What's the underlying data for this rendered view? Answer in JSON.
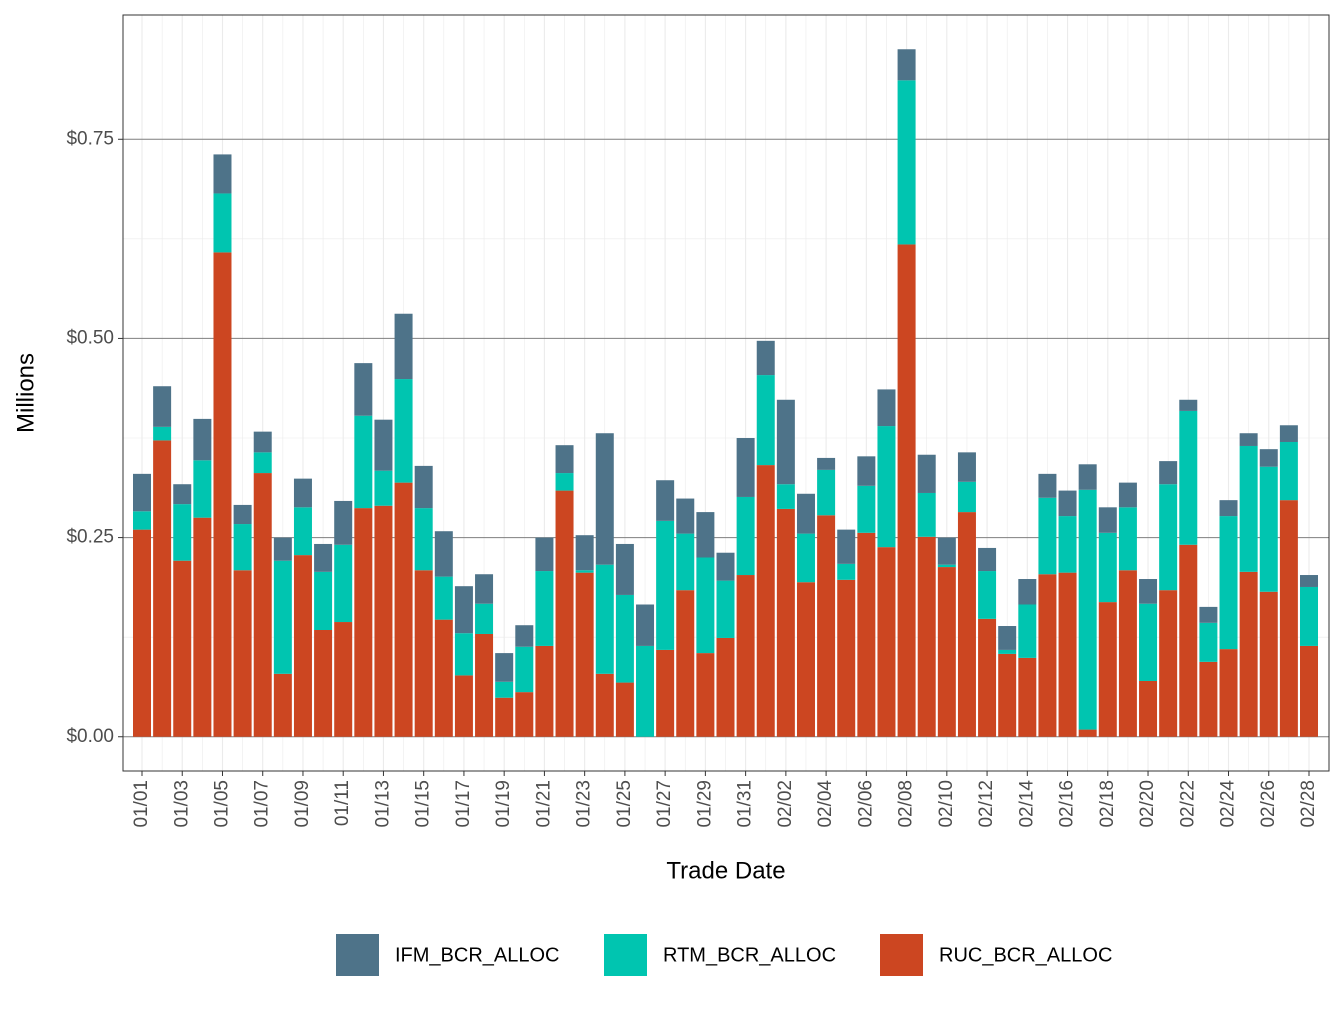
{
  "chart_data": {
    "type": "stacked_bar",
    "x_label": "Trade Date",
    "y_label": "Millions",
    "categories": [
      "01/01",
      null,
      "01/03",
      null,
      "01/05",
      null,
      "01/07",
      null,
      "01/09",
      null,
      "01/11",
      null,
      "01/13",
      null,
      "01/15",
      null,
      "01/17",
      null,
      "01/19",
      null,
      "01/21",
      null,
      "01/23",
      null,
      "01/25",
      null,
      "01/27",
      null,
      "01/29",
      null,
      "01/31",
      null,
      "02/02",
      null,
      "02/04",
      null,
      "02/06",
      null,
      "02/08",
      null,
      "02/10",
      null,
      "02/12",
      null,
      "02/14",
      null,
      "02/16",
      null,
      "02/18",
      null,
      "02/20",
      null,
      "02/22",
      null,
      "02/24",
      null,
      "02/26",
      null,
      "02/28"
    ],
    "series": [
      {
        "name": "IFM_BCR_ALLOC",
        "color": "#4e7389",
        "values": [
          0.047,
          0.051,
          0.025,
          0.052,
          0.049,
          0.024,
          0.026,
          0.029,
          0.036,
          0.035,
          0.055,
          0.066,
          0.064,
          0.082,
          0.053,
          0.057,
          0.059,
          0.037,
          0.036,
          0.027,
          0.042,
          0.035,
          0.044,
          0.165,
          0.064,
          0.052,
          0.051,
          0.044,
          0.057,
          0.035,
          0.074,
          0.043,
          0.106,
          0.05,
          0.015,
          0.043,
          0.037,
          0.046,
          0.039,
          0.048,
          0.034,
          0.037,
          0.029,
          0.03,
          0.032,
          0.03,
          0.032,
          0.032,
          0.032,
          0.031,
          0.031,
          0.029,
          0.014,
          0.02,
          0.02,
          0.016,
          0.022,
          0.021,
          0.015
        ]
      },
      {
        "name": "RTM_BCR_ALLOC",
        "color": "#00c5b0",
        "values": [
          0.023,
          0.017,
          0.071,
          0.072,
          0.074,
          0.058,
          0.026,
          0.142,
          0.06,
          0.073,
          0.097,
          0.116,
          0.044,
          0.13,
          0.078,
          0.054,
          0.053,
          0.038,
          0.02,
          0.057,
          0.094,
          0.022,
          0.003,
          0.137,
          0.11,
          0.114,
          0.162,
          0.071,
          0.12,
          0.072,
          0.098,
          0.113,
          0.031,
          0.061,
          0.057,
          0.02,
          0.059,
          0.152,
          0.206,
          0.055,
          0.003,
          0.038,
          0.06,
          0.005,
          0.067,
          0.096,
          0.071,
          0.301,
          0.087,
          0.079,
          0.097,
          0.133,
          0.168,
          0.049,
          0.167,
          0.158,
          0.157,
          0.073,
          0.074
        ]
      },
      {
        "name": "RUC_BCR_ALLOC",
        "color": "#cc4621",
        "values": [
          0.26,
          0.372,
          0.221,
          0.275,
          0.608,
          0.209,
          0.331,
          0.079,
          0.228,
          0.134,
          0.144,
          0.287,
          0.29,
          0.319,
          0.209,
          0.147,
          0.077,
          0.129,
          0.049,
          0.056,
          0.114,
          0.309,
          0.206,
          0.079,
          0.068,
          0,
          0.109,
          0.184,
          0.105,
          0.124,
          0.203,
          0.341,
          0.286,
          0.194,
          0.278,
          0.197,
          0.256,
          0.238,
          0.618,
          0.251,
          0.213,
          0.282,
          0.148,
          0.104,
          0.099,
          0.204,
          0.206,
          0.009,
          0.169,
          0.209,
          0.07,
          0.184,
          0.241,
          0.094,
          0.11,
          0.207,
          0.182,
          0.297,
          0.114
        ]
      }
    ],
    "ylim": [
      -0.043,
      0.906
    ],
    "yticks": [
      {
        "value": 0,
        "label": "$0.00"
      },
      {
        "value": 0.25,
        "label": "$0.25"
      },
      {
        "value": 0.5,
        "label": "$0.50"
      },
      {
        "value": 0.75,
        "label": "$0.75"
      }
    ],
    "grid": true,
    "legend": "bottom"
  }
}
